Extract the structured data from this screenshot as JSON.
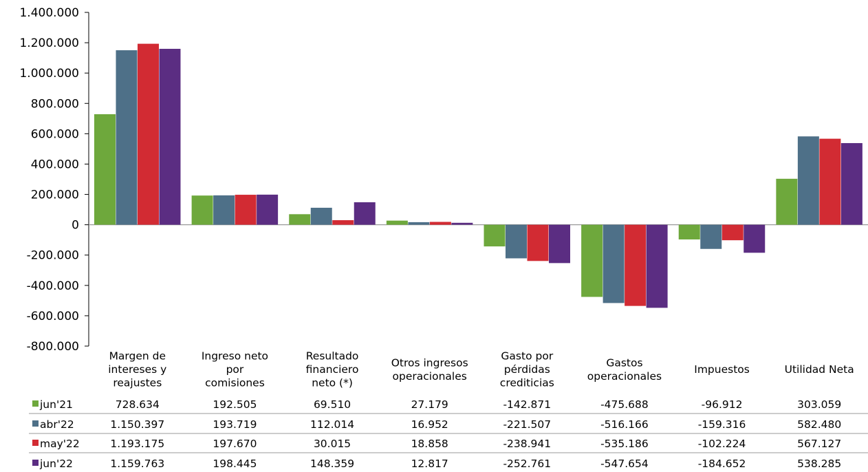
{
  "chart_data": {
    "type": "bar",
    "categories": [
      [
        "Margen de",
        "intereses y",
        "reajustes"
      ],
      [
        "Ingreso neto",
        "por",
        "comisiones"
      ],
      [
        "Resultado",
        "financiero",
        "neto (*)"
      ],
      [
        "Otros ingresos",
        "operacionales"
      ],
      [
        "Gasto por",
        "pérdidas",
        "crediticias"
      ],
      [
        "Gastos",
        "operacionales"
      ],
      [
        "Impuestos"
      ],
      [
        "Utilidad Neta"
      ]
    ],
    "series": [
      {
        "name": "jun'21",
        "color": "#6EA83C",
        "values": [
          728634,
          192505,
          69510,
          27179,
          -142871,
          -475688,
          -96912,
          303059
        ],
        "labels": [
          "728.634",
          "192.505",
          "69.510",
          "27.179",
          "-142.871",
          "-475.688",
          "-96.912",
          "303.059"
        ]
      },
      {
        "name": "abr'22",
        "color": "#4E7088",
        "values": [
          1150397,
          193719,
          112014,
          16952,
          -221507,
          -516166,
          -159316,
          582480
        ],
        "labels": [
          "1.150.397",
          "193.719",
          "112.014",
          "16.952",
          "-221.507",
          "-516.166",
          "-159.316",
          "582.480"
        ]
      },
      {
        "name": "may'22",
        "color": "#D22B33",
        "values": [
          1193175,
          197670,
          30015,
          18858,
          -238941,
          -535186,
          -102224,
          567127
        ],
        "labels": [
          "1.193.175",
          "197.670",
          "30.015",
          "18.858",
          "-238.941",
          "-535.186",
          "-102.224",
          "567.127"
        ]
      },
      {
        "name": "jun'22",
        "color": "#5B2D82",
        "values": [
          1159763,
          198445,
          148359,
          12817,
          -252761,
          -547654,
          -184652,
          538285
        ],
        "labels": [
          "1.159.763",
          "198.445",
          "148.359",
          "12.817",
          "-252.761",
          "-547.654",
          "-184.652",
          "538.285"
        ]
      }
    ],
    "ylim": [
      -800000,
      1400000
    ],
    "yticks": [
      1400000,
      1200000,
      1000000,
      800000,
      600000,
      400000,
      200000,
      0,
      -200000,
      -400000,
      -600000,
      -800000
    ],
    "ytick_labels": [
      "1.400.000",
      "1.200.000",
      "1.000.000",
      "800.000",
      "600.000",
      "400.000",
      "200.000",
      "0",
      "-200.000",
      "-400.000",
      "-600.000",
      "-800.000"
    ],
    "legend": "data-table-left",
    "grid": false,
    "title": "",
    "xlabel": "",
    "ylabel": ""
  }
}
